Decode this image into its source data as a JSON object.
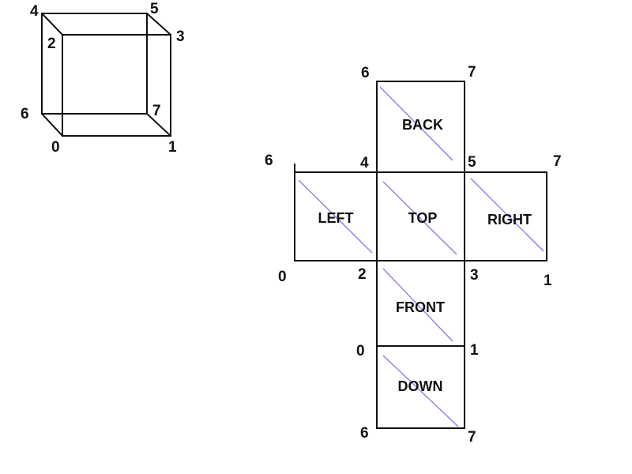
{
  "diagram": {
    "colors": {
      "edge": "#111111",
      "diagonal": "#7b7bf0",
      "background": "#ffffff"
    },
    "cube": {
      "vertex_labels": [
        "4",
        "5",
        "2",
        "3",
        "6",
        "7",
        "0",
        "1"
      ]
    },
    "net": {
      "faces": {
        "back": "BACK",
        "left": "LEFT",
        "top": "TOP",
        "right": "RIGHT",
        "front": "FRONT",
        "down": "DOWN"
      },
      "vertex_labels": {
        "back_tl": "6",
        "back_tr": "7",
        "left_tl": "6",
        "top_tl": "4",
        "top_tr": "5",
        "right_tr": "7",
        "left_bl": "0",
        "top_bl": "2",
        "top_br": "3",
        "right_br": "1",
        "front_bl": "0",
        "front_br": "1",
        "down_bl": "6",
        "down_br": "7"
      }
    }
  }
}
